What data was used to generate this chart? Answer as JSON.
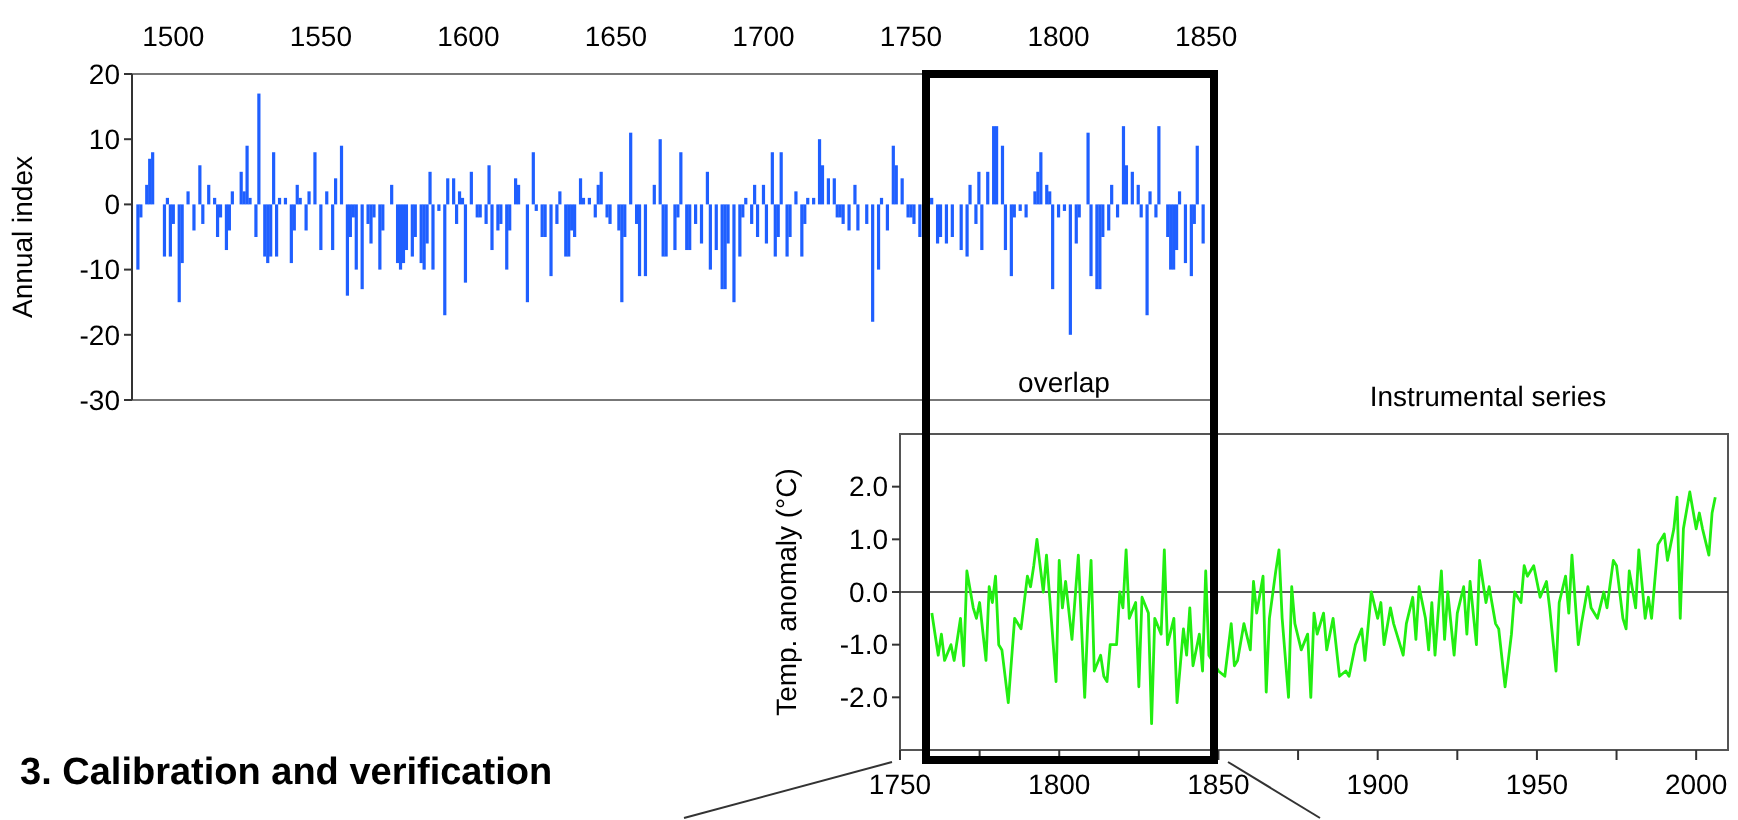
{
  "chart_data": [
    {
      "type": "bar",
      "ylabel": "Annual index",
      "color": "#1f5fff",
      "xlim": [
        1486,
        1852
      ],
      "xticks": [
        1500,
        1550,
        1600,
        1650,
        1700,
        1750,
        1800,
        1850
      ],
      "ylim": [
        -30,
        20
      ],
      "yticks": [
        20,
        10,
        0,
        -10,
        -20,
        -30
      ],
      "annotations": [
        "overlap"
      ],
      "x": [
        1488,
        1489,
        1491,
        1492,
        1493,
        1497,
        1498,
        1499,
        1500,
        1502,
        1503,
        1505,
        1507,
        1509,
        1510,
        1512,
        1514,
        1515,
        1516,
        1518,
        1519,
        1520,
        1523,
        1524,
        1525,
        1526,
        1528,
        1529,
        1531,
        1532,
        1533,
        1534,
        1535,
        1536,
        1538,
        1540,
        1541,
        1542,
        1543,
        1545,
        1546,
        1548,
        1550,
        1552,
        1554,
        1555,
        1557,
        1559,
        1560,
        1561,
        1562,
        1564,
        1566,
        1567,
        1568,
        1570,
        1571,
        1574,
        1576,
        1577,
        1578,
        1579,
        1581,
        1582,
        1584,
        1585,
        1586,
        1587,
        1588,
        1590,
        1592,
        1593,
        1595,
        1596,
        1597,
        1598,
        1599,
        1601,
        1603,
        1604,
        1606,
        1607,
        1608,
        1610,
        1611,
        1613,
        1614,
        1616,
        1617,
        1620,
        1622,
        1623,
        1625,
        1626,
        1628,
        1630,
        1631,
        1633,
        1634,
        1635,
        1636,
        1638,
        1639,
        1641,
        1643,
        1644,
        1645,
        1647,
        1648,
        1651,
        1652,
        1653,
        1655,
        1657,
        1658,
        1660,
        1663,
        1665,
        1666,
        1667,
        1670,
        1671,
        1672,
        1674,
        1675,
        1677,
        1679,
        1681,
        1682,
        1684,
        1686,
        1687,
        1688,
        1690,
        1692,
        1693,
        1694,
        1696,
        1697,
        1698,
        1700,
        1701,
        1703,
        1704,
        1705,
        1706,
        1708,
        1709,
        1711,
        1713,
        1714,
        1715,
        1717,
        1719,
        1720,
        1722,
        1724,
        1725,
        1726,
        1727,
        1729,
        1731,
        1732,
        1735,
        1737,
        1739,
        1740,
        1742,
        1744,
        1745,
        1747,
        1749,
        1750,
        1751,
        1753,
        1757,
        1759,
        1760,
        1762,
        1764,
        1767,
        1769,
        1770,
        1772,
        1773,
        1774,
        1776,
        1778,
        1779,
        1781,
        1782,
        1784,
        1785,
        1787,
        1789,
        1792,
        1793,
        1794,
        1796,
        1797,
        1798,
        1800,
        1802,
        1804,
        1806,
        1807,
        1810,
        1811,
        1813,
        1814,
        1815,
        1817,
        1818,
        1820,
        1822,
        1823,
        1825,
        1827,
        1828,
        1830,
        1831,
        1833,
        1834,
        1837,
        1838,
        1839,
        1840,
        1841,
        1843,
        1845,
        1846,
        1847,
        1849
      ],
      "values": [
        -10,
        -2,
        3,
        7,
        8,
        -8,
        1,
        -8,
        -3,
        -15,
        -9,
        2,
        -4,
        6,
        -3,
        3,
        1,
        -5,
        -2,
        -7,
        -4,
        2,
        5,
        2,
        9,
        1,
        -5,
        17,
        -8,
        -9,
        -8,
        8,
        -8,
        1,
        1,
        -9,
        -4,
        3,
        1,
        -4,
        2,
        8,
        -7,
        2,
        -7,
        4,
        9,
        -14,
        -5,
        -2,
        -10,
        -13,
        -3,
        -6,
        -2,
        -10,
        -4,
        3,
        -9,
        -10,
        -9,
        -7,
        -8,
        -5,
        -9,
        -10,
        -6,
        5,
        -10,
        -1,
        -17,
        4,
        4,
        -3,
        2,
        1,
        -12,
        5,
        -2,
        -2,
        -3,
        6,
        -7,
        -4,
        -3,
        -10,
        -4,
        4,
        3,
        -15,
        8,
        -1,
        -5,
        -5,
        -11,
        -3,
        2,
        -8,
        -8,
        -4,
        -5,
        4,
        1,
        1,
        -2,
        3,
        5,
        -2,
        -3,
        -4,
        -15,
        -5,
        11,
        -3,
        -11,
        -11,
        3,
        10,
        -8,
        -8,
        -7,
        -2,
        8,
        -7,
        -7,
        -3,
        -6,
        5,
        -10,
        -7,
        -13,
        -13,
        -6,
        -15,
        -8,
        -2,
        1,
        -3,
        3,
        -5,
        3,
        -6,
        8,
        -8,
        -5,
        8,
        -8,
        -5,
        2,
        -8,
        -3,
        1,
        1,
        10,
        6,
        4,
        4,
        -2,
        -2,
        -3,
        -4,
        3,
        -4,
        -3,
        -18,
        -10,
        1,
        -4,
        9,
        6,
        4,
        -2,
        -2,
        -3,
        -5,
        1,
        -6,
        -5,
        -6,
        -5,
        -7,
        -8,
        3,
        -3,
        5,
        -7,
        5,
        12,
        12,
        9,
        -7,
        -11,
        -2,
        -1,
        -2,
        2,
        5,
        8,
        3,
        2,
        -13,
        -2,
        -1,
        -20,
        -6,
        -2,
        11,
        -11,
        -13,
        -13,
        -5,
        -4,
        3,
        -2,
        12,
        6,
        5,
        3,
        -2,
        -17,
        2,
        -2,
        12,
        -5,
        -10,
        -10,
        -7,
        2,
        -9,
        -11,
        -3,
        9,
        -6
      ]
    },
    {
      "type": "line",
      "title": "Instrumental series",
      "ylabel": "Temp. anomaly (°C)",
      "color": "#22ee11",
      "xlim": [
        1750,
        2010
      ],
      "xticks": [
        1750,
        {
          "value": 1775,
          "label": null
        },
        1800,
        {
          "value": 1825,
          "label": null
        },
        1850,
        {
          "value": 1875,
          "label": null
        },
        1900,
        {
          "value": 1925,
          "label": null
        },
        1950,
        {
          "value": 1975,
          "label": null
        },
        2000
      ],
      "ylim": [
        -3,
        3
      ],
      "yticks": [
        {
          "value": 2,
          "label": "2.0"
        },
        {
          "value": 1,
          "label": "1.0"
        },
        {
          "value": 0,
          "label": "0.0"
        },
        {
          "value": -1,
          "label": "-1.0"
        },
        {
          "value": -2,
          "label": "-2.0"
        }
      ],
      "ref_lines": [
        {
          "axis": "y",
          "value": 0
        }
      ],
      "annotations": [
        "3. Calibration and verification"
      ],
      "x": [
        1760,
        1762,
        1763,
        1764,
        1766,
        1767,
        1769,
        1770,
        1771,
        1773,
        1774,
        1775,
        1777,
        1778,
        1779,
        1780,
        1781,
        1782,
        1784,
        1786,
        1788,
        1790,
        1791,
        1792,
        1793,
        1795,
        1796,
        1797,
        1799,
        1800,
        1801,
        1802,
        1804,
        1806,
        1808,
        1809,
        1810,
        1811,
        1813,
        1814,
        1815,
        1816,
        1818,
        1819,
        1820,
        1821,
        1822,
        1824,
        1825,
        1826,
        1828,
        1829,
        1830,
        1832,
        1833,
        1834,
        1836,
        1837,
        1839,
        1840,
        1841,
        1842,
        1844,
        1845,
        1846,
        1847,
        1850,
        1852,
        1854,
        1855,
        1856,
        1858,
        1860,
        1861,
        1862,
        1864,
        1865,
        1866,
        1868,
        1869,
        1870,
        1872,
        1873,
        1874,
        1876,
        1878,
        1879,
        1880,
        1881,
        1883,
        1884,
        1886,
        1888,
        1890,
        1891,
        1893,
        1895,
        1896,
        1898,
        1900,
        1901,
        1902,
        1904,
        1905,
        1908,
        1909,
        1911,
        1912,
        1913,
        1915,
        1916,
        1917,
        1918,
        1920,
        1921,
        1922,
        1924,
        1925,
        1927,
        1928,
        1929,
        1931,
        1932,
        1934,
        1935,
        1937,
        1938,
        1940,
        1942,
        1943,
        1945,
        1946,
        1947,
        1949,
        1951,
        1953,
        1954,
        1956,
        1957,
        1959,
        1960,
        1961,
        1963,
        1964,
        1966,
        1967,
        1969,
        1971,
        1972,
        1974,
        1975,
        1977,
        1978,
        1979,
        1981,
        1982,
        1984,
        1985,
        1986,
        1987,
        1988,
        1990,
        1991,
        1993,
        1994,
        1995,
        1996,
        1998,
        2000,
        2001,
        2002,
        2004,
        2005,
        2006
      ],
      "values": [
        -0.4,
        -1.2,
        -0.8,
        -1.3,
        -1.0,
        -1.3,
        -0.5,
        -1.4,
        0.4,
        -0.3,
        -0.5,
        -0.2,
        -1.3,
        0.1,
        -0.2,
        0.3,
        -1.0,
        -1.1,
        -2.1,
        -0.5,
        -0.7,
        0.3,
        0.1,
        0.5,
        1.0,
        0.0,
        0.7,
        -0.1,
        -1.7,
        0.6,
        -0.3,
        0.2,
        -0.9,
        0.7,
        -2.0,
        -0.5,
        0.6,
        -1.5,
        -1.2,
        -1.6,
        -1.7,
        -1.0,
        -1.0,
        0.0,
        -0.3,
        0.8,
        -0.5,
        -0.2,
        -1.8,
        -0.1,
        -0.4,
        -2.5,
        -0.5,
        -0.8,
        0.8,
        -1.0,
        -0.5,
        -2.1,
        -0.7,
        -1.2,
        -0.3,
        -1.4,
        -0.8,
        -1.5,
        0.4,
        -1.2,
        -1.5,
        -1.6,
        -0.6,
        -1.4,
        -1.3,
        -0.6,
        -1.1,
        0.2,
        -0.4,
        0.3,
        -1.9,
        -0.5,
        0.4,
        0.8,
        -0.5,
        -2.0,
        0.1,
        -0.6,
        -1.1,
        -0.8,
        -2.0,
        -0.4,
        -0.8,
        -0.4,
        -1.1,
        -0.5,
        -1.6,
        -1.5,
        -1.6,
        -1.0,
        -0.7,
        -1.3,
        0.0,
        -0.5,
        -0.2,
        -1.0,
        -0.3,
        -0.6,
        -1.2,
        -0.6,
        -0.1,
        -0.9,
        0.1,
        -0.5,
        -1.1,
        -0.2,
        -1.2,
        0.4,
        -0.9,
        0.0,
        -1.2,
        -0.4,
        0.1,
        -0.8,
        0.2,
        -1.0,
        0.6,
        -0.2,
        0.1,
        -0.6,
        -0.7,
        -1.8,
        -0.8,
        0.0,
        -0.2,
        0.5,
        0.3,
        0.5,
        -0.1,
        0.2,
        -0.3,
        -1.5,
        -0.2,
        0.3,
        -0.4,
        0.7,
        -1.0,
        -0.6,
        0.1,
        -0.3,
        -0.5,
        0.0,
        -0.3,
        0.6,
        0.5,
        -0.5,
        -0.7,
        0.4,
        -0.3,
        0.8,
        -0.5,
        -0.1,
        -0.5,
        0.2,
        0.9,
        1.1,
        0.6,
        1.2,
        1.8,
        -0.5,
        1.2,
        1.9,
        1.2,
        1.5,
        1.2,
        0.7,
        1.5,
        1.8
      ]
    }
  ]
}
